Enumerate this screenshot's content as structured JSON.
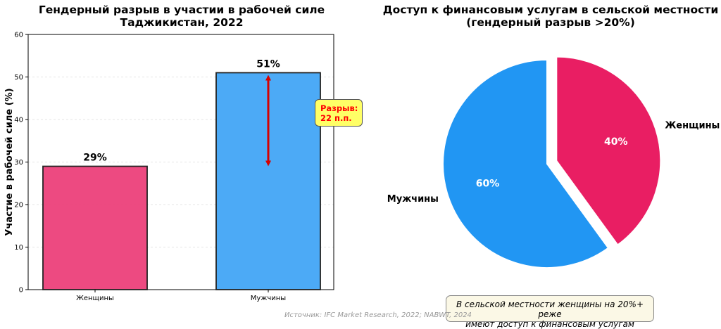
{
  "charts": {
    "left": {
      "title_line1": "Гендерный разрыв в участии в рабочей силе",
      "title_line2": "Таджикистан, 2022",
      "gap_line1": "Разрыв:",
      "gap_line2": "22 п.п."
    },
    "right": {
      "title_line1": "Доступ к финансовым услугам в сельской местности",
      "title_line2": "(гендерный разрыв >20%)",
      "note_line1": "В сельской местности женщины на 20%+ реже",
      "note_line2": "имеют доступ к финансовым услугам"
    }
  },
  "source": "Источник: IFC Market Research, 2022; NABWT, 2024",
  "colors": {
    "women": "#ec407a",
    "men": "#42a5f5",
    "pie_women": "#e91e63",
    "pie_men": "#2196f3",
    "gap_arrow": "#d50000"
  },
  "chart_data": [
    {
      "type": "bar",
      "title": "Гендерный разрыв в участии в рабочей силе\nТаджикистан, 2022",
      "categories": [
        "Женщины",
        "Мужчины"
      ],
      "values": [
        29,
        51
      ],
      "value_labels": [
        "29%",
        "51%"
      ],
      "xlabel": "",
      "ylabel": "Участие в рабочей силе (%)",
      "ylim": [
        0,
        60
      ],
      "yticks": [
        0,
        10,
        20,
        30,
        40,
        50,
        60
      ],
      "grid": true,
      "annotations": [
        "Разрыв: 22 п.п."
      ]
    },
    {
      "type": "pie",
      "title": "Доступ к финансовым услугам в сельской местности\n(гендерный разрыв >20%)",
      "labels": [
        "Женщины",
        "Мужчины"
      ],
      "values": [
        40,
        60
      ],
      "value_labels": [
        "40%",
        "60%"
      ],
      "exploded": [
        "Женщины"
      ]
    }
  ]
}
